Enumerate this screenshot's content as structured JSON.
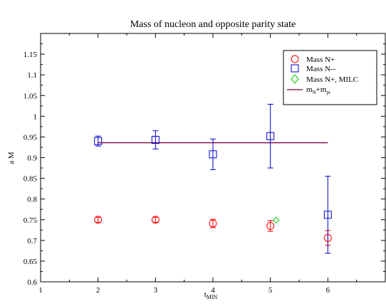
{
  "chart_data": {
    "type": "scatter",
    "title": "Mass of nucleon and opposite parity state",
    "xlabel": "t",
    "xlabel_sub": "MIN",
    "ylabel": "a M",
    "xlim": [
      1,
      7
    ],
    "ylim": [
      0.6,
      1.2
    ],
    "x_ticks": [
      1,
      2,
      3,
      4,
      5,
      6
    ],
    "y_ticks": [
      0.6,
      0.65,
      0.7,
      0.75,
      0.8,
      0.85,
      0.9,
      0.95,
      1,
      1.05,
      1.1,
      1.15
    ],
    "y_tick_labels": [
      "0.6",
      "0.65",
      "0.7",
      "0.75",
      "0.8",
      "0.85",
      "0.9",
      "0.95",
      "1",
      "1.05",
      "1.1",
      "1.15"
    ],
    "grid": false,
    "legend_position": "top-right",
    "colors": {
      "mass_n_plus": "#ff0000",
      "mass_n_minus": "#0000cc",
      "mass_n_plus_milc": "#00cc00",
      "mn_plus_mpi": "#800040"
    },
    "series": [
      {
        "name": "Mass N+",
        "marker": "circle",
        "points": [
          {
            "x": 2,
            "y": 0.75,
            "err": 0.006
          },
          {
            "x": 3,
            "y": 0.75,
            "err": 0.006
          },
          {
            "x": 4,
            "y": 0.741,
            "err": 0.01
          },
          {
            "x": 5,
            "y": 0.735,
            "err": 0.013
          },
          {
            "x": 6,
            "y": 0.706,
            "err": 0.018
          }
        ]
      },
      {
        "name": "Mass N--",
        "marker": "square",
        "points": [
          {
            "x": 2,
            "y": 0.94,
            "err": 0.012
          },
          {
            "x": 3,
            "y": 0.943,
            "err": 0.022
          },
          {
            "x": 4,
            "y": 0.908,
            "err": 0.037
          },
          {
            "x": 5,
            "y": 0.952,
            "err": 0.077
          },
          {
            "x": 6,
            "y": 0.762,
            "err": 0.093
          }
        ]
      },
      {
        "name": "Mass N+, MILC",
        "marker": "diamond",
        "points": [
          {
            "x": 5.1,
            "y": 0.749
          }
        ]
      },
      {
        "name": "m",
        "name_parts": [
          "m",
          "N",
          "+m",
          "pi"
        ],
        "marker": "line",
        "line": {
          "x": [
            2,
            6
          ],
          "y": [
            0.936,
            0.936
          ]
        }
      }
    ]
  }
}
